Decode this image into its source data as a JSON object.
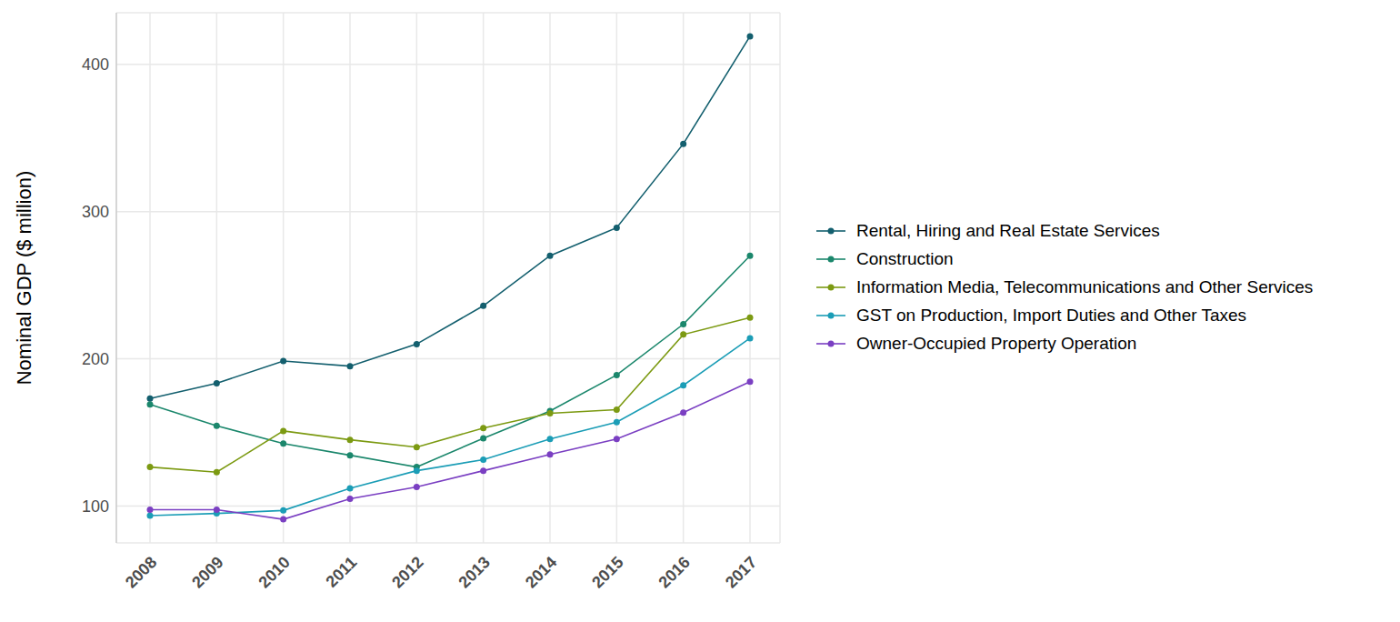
{
  "chart_data": {
    "type": "line",
    "y_label": "Nominal GDP ($ million)",
    "categories": [
      "2008",
      "2009",
      "2010",
      "2011",
      "2012",
      "2013",
      "2014",
      "2015",
      "2016",
      "2017"
    ],
    "series": [
      {
        "name": "Rental, Hiring and Real Estate Services",
        "color": "#135f6e",
        "values": [
          173,
          183.4,
          198.5,
          195,
          210,
          236,
          270,
          289,
          346,
          419
        ]
      },
      {
        "name": "Construction",
        "color": "#1b876c",
        "values": [
          169,
          154.5,
          142.5,
          134.5,
          126.5,
          146,
          164.5,
          189,
          223.5,
          270
        ]
      },
      {
        "name": "Information Media, Telecommunications and Other Services",
        "color": "#7c9a12",
        "values": [
          126.5,
          123,
          151,
          145,
          140,
          153,
          163,
          165.5,
          216.5,
          228
        ]
      },
      {
        "name": "GST on Production, Import Duties and Other Taxes",
        "color": "#1b9db6",
        "values": [
          93.5,
          95,
          97,
          112,
          124,
          131.5,
          145.5,
          157,
          182,
          214
        ]
      },
      {
        "name": "Owner-Occupied Property Operation",
        "color": "#7a3fc2",
        "values": [
          97.5,
          97.5,
          91,
          105,
          113,
          124,
          135,
          145.5,
          163.5,
          184.5
        ]
      }
    ],
    "ylim": [
      75,
      435
    ],
    "yticks": [
      100,
      200,
      300,
      400
    ],
    "grid": true,
    "legend": "right",
    "marker": "circle"
  }
}
